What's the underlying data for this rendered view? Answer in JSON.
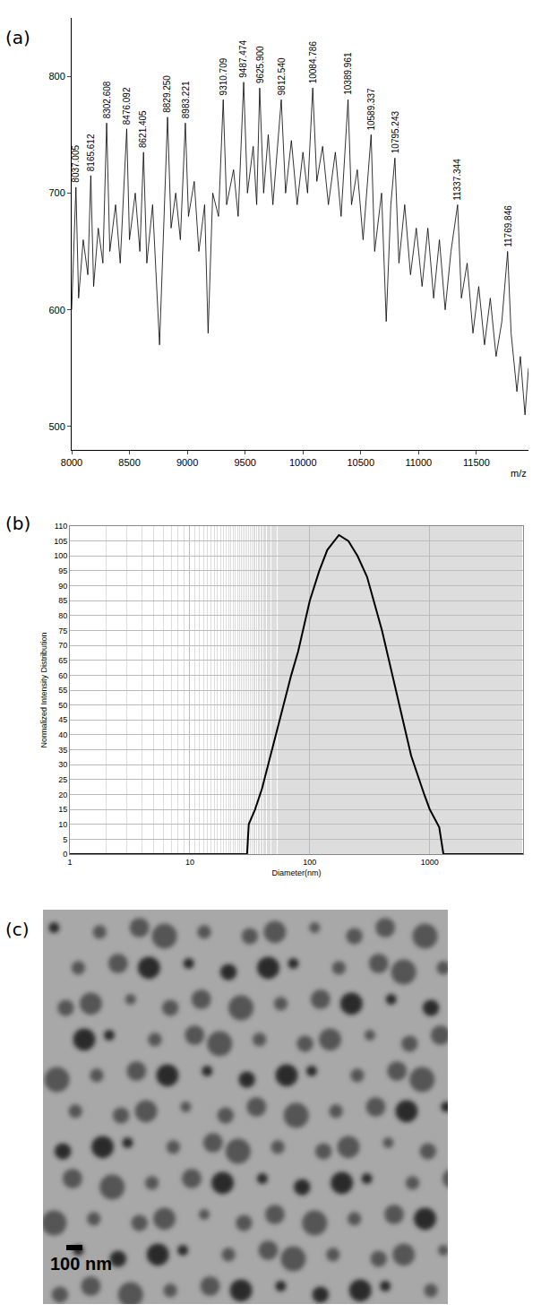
{
  "chart_data": [
    {
      "panel": "(a)",
      "type": "line",
      "xlabel": "m/z",
      "color": "#000000",
      "line_style": "solid",
      "x": [
        8000,
        8020,
        8037.005,
        8060,
        8100,
        8140,
        8165.612,
        8190,
        8230,
        8270,
        8302.608,
        8330,
        8380,
        8420,
        8476.092,
        8500,
        8550,
        8590,
        8621.405,
        8650,
        8700,
        8760,
        8800,
        8829.25,
        8860,
        8900,
        8940,
        8983.221,
        9010,
        9060,
        9100,
        9150,
        9180,
        9220,
        9270,
        9310.709,
        9340,
        9400,
        9440,
        9487.474,
        9520,
        9570,
        9600,
        9625.9,
        9660,
        9700,
        9740,
        9780,
        9812.54,
        9850,
        9900,
        9950,
        10000,
        10040,
        10084.786,
        10120,
        10170,
        10220,
        10280,
        10330,
        10389.961,
        10420,
        10470,
        10520,
        10560,
        10589.337,
        10620,
        10680,
        10720,
        10760,
        10795.243,
        10830,
        10880,
        10930,
        10980,
        11030,
        11080,
        11130,
        11180,
        11230,
        11280,
        11337.344,
        11370,
        11420,
        11470,
        11520,
        11570,
        11620,
        11670,
        11720,
        11769.846,
        11800,
        11850,
        11880,
        11920,
        11950
      ],
      "values": [
        600,
        655,
        705,
        610,
        660,
        630,
        715,
        620,
        670,
        640,
        760,
        650,
        690,
        640,
        755,
        660,
        700,
        650,
        735,
        640,
        690,
        570,
        680,
        765,
        670,
        700,
        660,
        760,
        680,
        710,
        650,
        690,
        580,
        700,
        680,
        780,
        690,
        720,
        680,
        795,
        700,
        740,
        690,
        790,
        700,
        750,
        690,
        740,
        780,
        700,
        745,
        690,
        735,
        700,
        790,
        710,
        740,
        690,
        735,
        680,
        780,
        690,
        720,
        660,
        710,
        750,
        650,
        700,
        590,
        690,
        730,
        640,
        690,
        630,
        670,
        620,
        670,
        610,
        660,
        600,
        650,
        690,
        610,
        640,
        580,
        620,
        570,
        610,
        560,
        590,
        650,
        580,
        530,
        560,
        510,
        550
      ],
      "xlim": [
        8000,
        11950
      ],
      "xticks": [
        8000,
        8500,
        9000,
        9500,
        10000,
        10500,
        11000,
        11500
      ],
      "ylim": [
        480,
        850
      ],
      "yticks": [
        500,
        600,
        700,
        800
      ],
      "grid": false,
      "annotations": [
        {
          "x": 8037.005,
          "y": 705,
          "text": "8037.005"
        },
        {
          "x": 8165.612,
          "y": 715,
          "text": "8165.612"
        },
        {
          "x": 8302.608,
          "y": 760,
          "text": "8302.608"
        },
        {
          "x": 8476.092,
          "y": 755,
          "text": "8476.092"
        },
        {
          "x": 8621.405,
          "y": 735,
          "text": "8621.405"
        },
        {
          "x": 8829.25,
          "y": 765,
          "text": "8829.250"
        },
        {
          "x": 8983.221,
          "y": 760,
          "text": "8983.221"
        },
        {
          "x": 9310.709,
          "y": 780,
          "text": "9310.709"
        },
        {
          "x": 9487.474,
          "y": 795,
          "text": "9487.474"
        },
        {
          "x": 9625.9,
          "y": 790,
          "text": "9625.900"
        },
        {
          "x": 9812.54,
          "y": 780,
          "text": "9812.540"
        },
        {
          "x": 10084.786,
          "y": 790,
          "text": "10084.786"
        },
        {
          "x": 10389.961,
          "y": 780,
          "text": "10389.961"
        },
        {
          "x": 10589.337,
          "y": 750,
          "text": "10589.337"
        },
        {
          "x": 10795.243,
          "y": 730,
          "text": "10795.243"
        },
        {
          "x": 11337.344,
          "y": 690,
          "text": "11337.344"
        },
        {
          "x": 11769.846,
          "y": 650,
          "text": "11769.846"
        }
      ]
    },
    {
      "panel": "(b)",
      "type": "line",
      "xlabel": "Diameter(nm)",
      "ylabel": "Normalized Intensity Distribution",
      "color": "#000000",
      "line_style": "solid",
      "log": "x",
      "x": [
        1,
        30,
        31,
        35,
        40,
        45,
        50,
        60,
        70,
        80,
        100,
        120,
        140,
        175,
        210,
        250,
        300,
        400,
        500,
        700,
        900,
        1000,
        1200,
        1300,
        6000
      ],
      "values": [
        0,
        0,
        10,
        15,
        22,
        30,
        37,
        50,
        60,
        68,
        85,
        95,
        102,
        107,
        105,
        100,
        93,
        75,
        58,
        33,
        20,
        15,
        9,
        0,
        0
      ],
      "xlim": [
        1,
        6000
      ],
      "xticks": [
        1,
        10,
        100,
        1000
      ],
      "ylim": [
        0,
        110
      ],
      "yticks": [
        0,
        5,
        10,
        15,
        20,
        25,
        30,
        35,
        40,
        45,
        50,
        55,
        60,
        65,
        70,
        75,
        80,
        85,
        90,
        95,
        100,
        105,
        110
      ],
      "grid": true
    }
  ],
  "image": {
    "panel": "(c)",
    "scale_bar": "100 nm"
  }
}
